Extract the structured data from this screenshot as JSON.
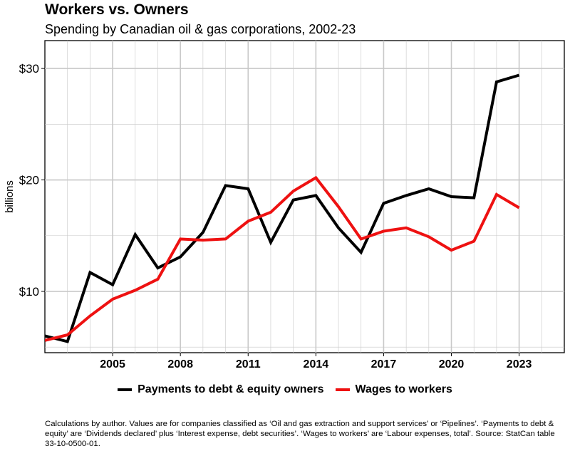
{
  "title": "Workers vs. Owners",
  "subtitle": "Spending by Canadian oil & gas corporations, 2002-23",
  "caption": "Calculations by author. Values are for companies classified as ‘Oil and gas extraction and support services’ or ‘Pipelines’. ‘Payments to debt & equity’ are ‘Dividends declared’ plus ‘Interest expense, debt securities’. ‘Wages to workers’ are ‘Labour expenses, total’. Source: StatCan table 33-10-0500-01.",
  "colors": {
    "owners": "#000000",
    "workers": "#ee1111",
    "grid": "#c8c8c8"
  },
  "chart_data": {
    "type": "line",
    "ylabel": "billions",
    "xlim": [
      2002,
      2025
    ],
    "ylim": [
      4.5,
      32.5
    ],
    "x_ticks": [
      2005,
      2008,
      2011,
      2014,
      2017,
      2020,
      2023
    ],
    "x_tick_labels": [
      "2005",
      "2008",
      "2011",
      "2014",
      "2017",
      "2020",
      "2023"
    ],
    "y_ticks": [
      10,
      20,
      30
    ],
    "y_tick_labels": [
      "$10",
      "$20",
      "$30"
    ],
    "grid": true,
    "legend_position": "bottom",
    "x": [
      2002,
      2003,
      2004,
      2005,
      2006,
      2007,
      2008,
      2009,
      2010,
      2011,
      2012,
      2013,
      2014,
      2015,
      2016,
      2017,
      2018,
      2019,
      2020,
      2021,
      2022,
      2023
    ],
    "series": [
      {
        "name": "Payments to debt & equity owners",
        "color": "#000000",
        "values": [
          6.0,
          5.5,
          11.7,
          10.6,
          15.1,
          12.1,
          13.1,
          15.3,
          19.5,
          19.2,
          14.4,
          18.2,
          18.6,
          15.7,
          13.5,
          17.9,
          18.6,
          19.2,
          18.5,
          18.4,
          28.8,
          29.4
        ]
      },
      {
        "name": "Wages to workers",
        "color": "#ee1111",
        "values": [
          5.6,
          6.1,
          7.8,
          9.3,
          10.1,
          11.1,
          14.7,
          14.6,
          14.7,
          16.3,
          17.1,
          19.0,
          20.2,
          17.6,
          14.7,
          15.4,
          15.7,
          14.9,
          13.7,
          14.5,
          18.7,
          17.5
        ]
      }
    ]
  }
}
